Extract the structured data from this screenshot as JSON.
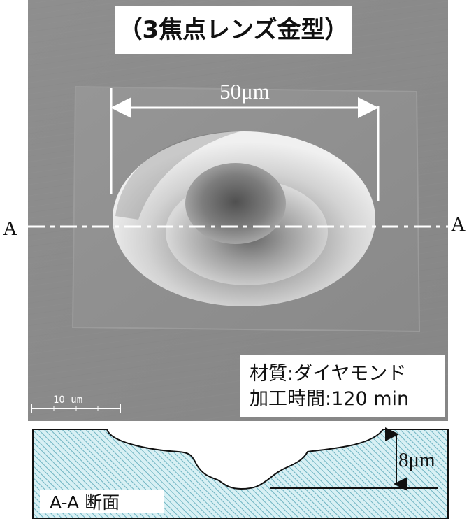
{
  "title": "（3焦点レンズ金型）",
  "dimension_top": "50μm",
  "section_left_label": "A",
  "section_right_label": "A",
  "scale_bar": "10 um",
  "info": {
    "material": "材質:ダイヤモンド",
    "machining_time": "加工時間:120 min"
  },
  "cross_section": {
    "label": "A-A 断面",
    "depth": "8μm",
    "hatch_color": "#b8e2ea",
    "line_color": "#2f7f8f"
  },
  "colors": {
    "sem_background": "#8b8b8b",
    "sem_surface": "#7f7f7f",
    "panel_white": "#ffffff",
    "text": "#111111"
  }
}
